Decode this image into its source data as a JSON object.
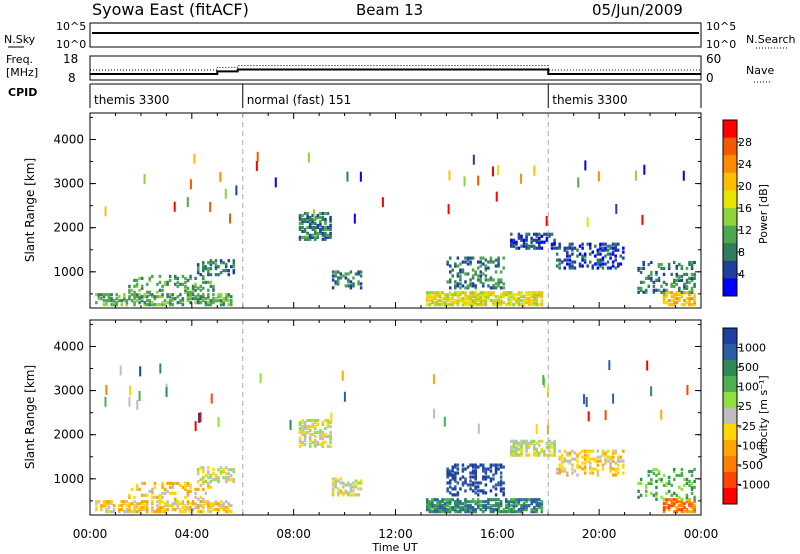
{
  "header": {
    "station": "Syowa East (fitACF)",
    "beam": "Beam 13",
    "date": "05/Jun/2009"
  },
  "top_panels": {
    "nsky_label": "N.Sky",
    "nsky_ticks": [
      "10^5",
      "10^0"
    ],
    "nsearch_label": "N.Search",
    "nsearch_ticks": [
      "10^5",
      "10^0"
    ],
    "freq_label": "Freq.",
    "freq_unit": "[MHz]",
    "freq_ticks": [
      "18",
      "8"
    ],
    "nave_label": "Nave",
    "nave_ticks": [
      "60",
      "0"
    ],
    "cpid_label": "CPID",
    "freq_steps": [
      {
        "from": 0.0,
        "to": 5.0,
        "mhz": 10.5
      },
      {
        "from": 5.0,
        "to": 5.8,
        "mhz": 11.6
      },
      {
        "from": 5.8,
        "to": 18.0,
        "mhz": 12.4
      },
      {
        "from": 18.0,
        "to": 24.0,
        "mhz": 10.5
      }
    ],
    "cpid_segments": [
      {
        "label": "themis 3300",
        "from": 0.0,
        "to": 6.0
      },
      {
        "label": "normal (fast) 151",
        "from": 6.0,
        "to": 18.0
      },
      {
        "label": "themis 3300",
        "from": 18.0,
        "to": 24.0
      }
    ]
  },
  "x_axis": {
    "label": "Time UT",
    "ticks": [
      "00:00",
      "04:00",
      "08:00",
      "12:00",
      "16:00",
      "20:00",
      "00:00"
    ],
    "tick_hours": [
      0,
      4,
      8,
      12,
      16,
      20,
      24
    ]
  },
  "y_axis": {
    "label": "Slant Range [km]",
    "ticks": [
      "1000",
      "2000",
      "3000",
      "4000"
    ],
    "tick_values": [
      1000,
      2000,
      3000,
      4000
    ],
    "ylim": [
      180,
      4600
    ]
  },
  "colorbars": {
    "power": {
      "label": "Power [dB]",
      "ticks": [
        "28",
        "24",
        "20",
        "16",
        "12",
        "8",
        "4"
      ],
      "colors": [
        "#ff0000",
        "#f25a00",
        "#ff8c00",
        "#ffbf00",
        "#e5e500",
        "#8fd33c",
        "#4ca84c",
        "#2e7d5e",
        "#1f3fa0",
        "#0000ff"
      ]
    },
    "velocity": {
      "label": "Velocity [m s⁻¹]",
      "ticks": [
        "1000",
        "500",
        "100",
        "25",
        "-25",
        "-100",
        "-500",
        "-1000"
      ],
      "colors": [
        "#1f3fa0",
        "#2b5ea3",
        "#2e8b57",
        "#4caf50",
        "#90e040",
        "#bebebe",
        "#ffd700",
        "#ffa500",
        "#ff7f00",
        "#ff4500",
        "#ff0000"
      ]
    }
  },
  "chart_data": [
    {
      "type": "heatmap",
      "title": "Power",
      "xlabel": "Time UT",
      "ylabel": "Slant Range [km]",
      "xlim": [
        0,
        24
      ],
      "ylim": [
        180,
        4600
      ],
      "colorbar_label": "Power [dB]",
      "regions": [
        {
          "t0": 0.2,
          "t1": 5.5,
          "r0": 220,
          "r1": 480,
          "level": 3,
          "density": 0.55
        },
        {
          "t0": 1.5,
          "t1": 4.8,
          "r0": 500,
          "r1": 900,
          "level": 3,
          "density": 0.25
        },
        {
          "t0": 4.2,
          "t1": 5.6,
          "r0": 900,
          "r1": 1250,
          "level": 2,
          "density": 0.45
        },
        {
          "t0": 8.2,
          "t1": 9.4,
          "r0": 1700,
          "r1": 2300,
          "level": 2,
          "density": 0.55
        },
        {
          "t0": 9.5,
          "t1": 10.6,
          "r0": 600,
          "r1": 1000,
          "level": 2,
          "density": 0.4
        },
        {
          "t0": 13.2,
          "t1": 17.8,
          "r0": 220,
          "r1": 520,
          "level": 5,
          "density": 0.75
        },
        {
          "t0": 14.0,
          "t1": 16.2,
          "r0": 600,
          "r1": 1300,
          "level": 2,
          "density": 0.35
        },
        {
          "t0": 16.5,
          "t1": 18.3,
          "r0": 1500,
          "r1": 1850,
          "level": 1,
          "density": 0.55
        },
        {
          "t0": 18.3,
          "t1": 21.0,
          "r0": 1050,
          "r1": 1600,
          "level": 1,
          "density": 0.35
        },
        {
          "t0": 22.5,
          "t1": 23.8,
          "r0": 220,
          "r1": 500,
          "level": 6,
          "density": 0.6
        },
        {
          "t0": 21.5,
          "t1": 23.8,
          "r0": 500,
          "r1": 1200,
          "level": 2,
          "density": 0.25
        }
      ]
    },
    {
      "type": "heatmap",
      "title": "Velocity",
      "xlabel": "Time UT",
      "ylabel": "Slant Range [km]",
      "xlim": [
        0,
        24
      ],
      "ylim": [
        180,
        4600
      ],
      "colorbar_label": "Velocity [m s⁻¹]",
      "regions": [
        {
          "t0": 0.2,
          "t1": 5.5,
          "r0": 220,
          "r1": 480,
          "level": 6,
          "density": 0.55
        },
        {
          "t0": 1.5,
          "t1": 4.8,
          "r0": 500,
          "r1": 900,
          "level": 6,
          "density": 0.25
        },
        {
          "t0": 4.2,
          "t1": 5.6,
          "r0": 900,
          "r1": 1250,
          "level": 5,
          "density": 0.45
        },
        {
          "t0": 8.2,
          "t1": 9.4,
          "r0": 1700,
          "r1": 2300,
          "level": 5,
          "density": 0.55
        },
        {
          "t0": 9.5,
          "t1": 10.6,
          "r0": 600,
          "r1": 1000,
          "level": 5,
          "density": 0.4
        },
        {
          "t0": 13.2,
          "t1": 17.8,
          "r0": 220,
          "r1": 520,
          "level": 2,
          "density": 0.75
        },
        {
          "t0": 14.0,
          "t1": 16.2,
          "r0": 600,
          "r1": 1300,
          "level": 0,
          "density": 0.35
        },
        {
          "t0": 16.5,
          "t1": 18.3,
          "r0": 1500,
          "r1": 1850,
          "level": 5,
          "density": 0.55
        },
        {
          "t0": 18.3,
          "t1": 21.0,
          "r0": 1050,
          "r1": 1600,
          "level": 6,
          "density": 0.35
        },
        {
          "t0": 22.5,
          "t1": 23.8,
          "r0": 220,
          "r1": 500,
          "level": 8,
          "density": 0.6
        },
        {
          "t0": 21.5,
          "t1": 23.8,
          "r0": 500,
          "r1": 1200,
          "level": 3,
          "density": 0.25
        }
      ]
    }
  ]
}
